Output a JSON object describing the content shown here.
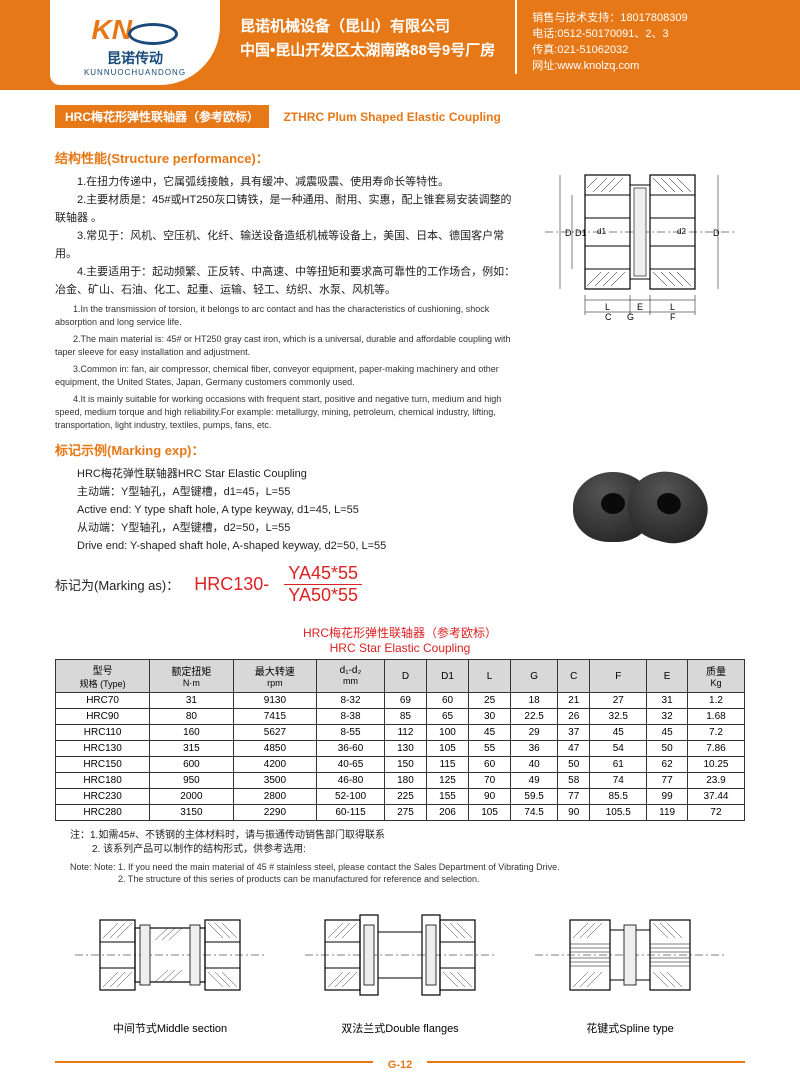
{
  "header": {
    "logo_en": "KN",
    "logo_cn": "昆诺传动",
    "logo_py": "KUNNUOCHUANDONG",
    "company": "昆诺机械设备（昆山）有限公司",
    "address": "中国•昆山开发区太湖南路88号9号厂房",
    "contact1": "销售与技术支持：18017808309",
    "contact2": "电话:0512-50170091、2、3",
    "contact3": "传真:021-51062032",
    "contact4": "网址:www.knolzq.com"
  },
  "title": {
    "cn": "HRC梅花形弹性联轴器（参考欧标）",
    "en": "ZTHRC Plum Shaped Elastic Coupling"
  },
  "structure": {
    "heading": "结构性能(Structure performance)：",
    "p1": "1.在扭力传递中，它属弧线接触，具有缓冲、减震吸震、使用寿命长等特性。",
    "p2": "2.主要材质是：45#或HT250灰口铸铁，是一种通用、耐用、实惠，配上锥套易安装调整的联轴器 。",
    "p3": "3.常见于：风机、空压机、化纤、输送设备造纸机械等设备上，美国、日本、德国客户常用。",
    "p4": "4.主要适用于：起动频繁、正反转、中高速、中等扭矩和要求高可靠性的工作场合，例如：冶金、矿山、石油、化工、起重、运输、轻工、纺织、水泵、风机等。",
    "e1": "1.In the transmission of torsion, it belongs to arc contact and has the characteristics of cushioning, shock absorption and long service life.",
    "e2": "2.The main material is: 45# or HT250 gray cast iron, which is a universal, durable and affordable coupling with taper sleeve for easy installation and adjustment.",
    "e3": "3.Common in: fan, air compressor, chemical fiber, conveyor equipment, paper-making machinery and other equipment, the United States, Japan, Germany customers commonly used.",
    "e4": "4.It is mainly suitable for working occasions with frequent start, positive and negative turn, medium and high speed, medium torque and high reliability.For example: metallurgy, mining, petroleum, chemical industry, lifting, transportation, light industry, textiles, pumps, fans, etc."
  },
  "marking": {
    "heading": "标记示例(Marking exp)：",
    "l1": "HRC梅花弹性联轴器HRC Star Elastic Coupling",
    "l2": "主动端：Y型轴孔，A型键槽，d1=45，L=55",
    "l3": "Active end: Y type shaft hole, A type keyway, d1=45, L=55",
    "l4": "从动端：Y型轴孔，A型键槽，d2=50，L=55",
    "l5": "Drive end: Y-shaped shaft hole, A-shaped keyway, d2=50, L=55",
    "as_label": "标记为(Marking as)：",
    "as_prefix": "HRC130-",
    "as_num": "YA45*55",
    "as_den": "YA50*55"
  },
  "table": {
    "title_cn": "HRC梅花形弹性联轴器（参考欧标）",
    "title_en": "HRC Star Elastic Coupling",
    "headers": {
      "c0a": "型号",
      "c0b": "规格 (Type)",
      "c1a": "额定扭矩",
      "c1b": "N·m",
      "c2a": "最大转速",
      "c2b": "rpm",
      "c3a": "d₁-d₂",
      "c3b": "mm",
      "c4": "D",
      "c5": "D1",
      "c6": "L",
      "c7": "G",
      "c8": "C",
      "c9": "F",
      "c10": "E",
      "c11a": "质量",
      "c11b": "Kg"
    },
    "rows": [
      [
        "HRC70",
        "31",
        "9130",
        "8-32",
        "69",
        "60",
        "25",
        "18",
        "21",
        "27",
        "31",
        "1.2"
      ],
      [
        "HRC90",
        "80",
        "7415",
        "8-38",
        "85",
        "65",
        "30",
        "22.5",
        "26",
        "32.5",
        "32",
        "1.68"
      ],
      [
        "HRC110",
        "160",
        "5627",
        "8-55",
        "112",
        "100",
        "45",
        "29",
        "37",
        "45",
        "45",
        "7.2"
      ],
      [
        "HRC130",
        "315",
        "4850",
        "36-60",
        "130",
        "105",
        "55",
        "36",
        "47",
        "54",
        "50",
        "7.86"
      ],
      [
        "HRC150",
        "600",
        "4200",
        "40-65",
        "150",
        "115",
        "60",
        "40",
        "50",
        "61",
        "62",
        "10.25"
      ],
      [
        "HRC180",
        "950",
        "3500",
        "46-80",
        "180",
        "125",
        "70",
        "49",
        "58",
        "74",
        "77",
        "23.9"
      ],
      [
        "HRC230",
        "2000",
        "2800",
        "52-100",
        "225",
        "155",
        "90",
        "59.5",
        "77",
        "85.5",
        "99",
        "37.44"
      ],
      [
        "HRC280",
        "3150",
        "2290",
        "60-115",
        "275",
        "206",
        "105",
        "74.5",
        "90",
        "105.5",
        "119",
        "72"
      ]
    ]
  },
  "notes": {
    "n1": "注：1.如需45#、不锈钢的主体材料时，请与振通传动销售部门取得联系",
    "n2": "2. 该系列产品可以制作的结构形式，供参考选用:",
    "e1": "Note: Note: 1. If you need the main material of 45 # stainless steel, please contact the Sales Department of Vibrating Drive.",
    "e2": "2. The structure of this series of products can be manufactured for reference and selection."
  },
  "diagrams": {
    "d1": "中间节式Middle section",
    "d2": "双法兰式Double flanges",
    "d3": "花键式Spline type"
  },
  "footer": {
    "page": "G-12"
  },
  "colors": {
    "brand": "#e67817",
    "red": "#d22",
    "navy": "#1a4a7a",
    "gridbg": "#d8d8d8"
  }
}
